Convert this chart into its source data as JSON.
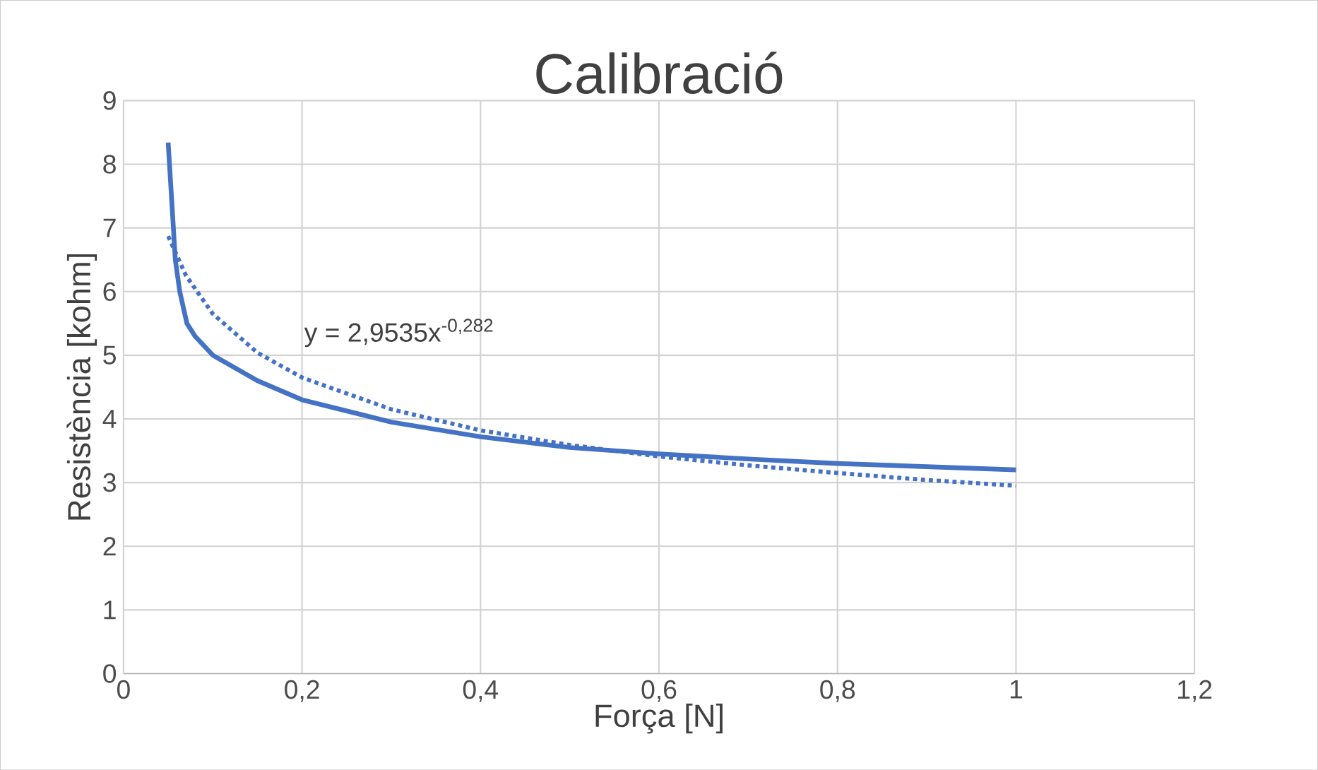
{
  "chart_data": {
    "type": "line",
    "title": "Calibració",
    "xlabel": "Força [N]",
    "ylabel": "Resistència [kohm]",
    "xlim": [
      0,
      1.2
    ],
    "xticks": [
      {
        "value": 0,
        "label": "0"
      },
      {
        "value": 0.2,
        "label": "0,2"
      },
      {
        "value": 0.4,
        "label": "0,4"
      },
      {
        "value": 0.6,
        "label": "0,6"
      },
      {
        "value": 0.8,
        "label": "0,8"
      },
      {
        "value": 1,
        "label": "1"
      },
      {
        "value": 1.2,
        "label": "1,2"
      }
    ],
    "ylim": [
      0,
      9
    ],
    "yticks": [
      0,
      1,
      2,
      3,
      4,
      5,
      6,
      7,
      8,
      9
    ],
    "grid": true,
    "annotations": [
      "y = 2,9535x$^{-0,282}$"
    ],
    "series": [
      {
        "color": "#4472c4",
        "line_style": "solid",
        "x": [
          0.05,
          0.055,
          0.058,
          0.063,
          0.071,
          0.08,
          0.1,
          0.15,
          0.2,
          0.3,
          0.4,
          0.5,
          0.6,
          0.7,
          0.8,
          0.9,
          1.0
        ],
        "values": [
          8.34,
          7.2,
          6.5,
          6.0,
          5.5,
          5.3,
          5.0,
          4.6,
          4.3,
          3.95,
          3.72,
          3.55,
          3.45,
          3.37,
          3.3,
          3.25,
          3.2
        ]
      },
      {
        "color": "#4472c4",
        "line_style": "dotted",
        "x": [
          0.05,
          0.07,
          0.1,
          0.15,
          0.2,
          0.3,
          0.4,
          0.5,
          0.6,
          0.7,
          0.8,
          0.9,
          1.0
        ],
        "values": [
          6.87,
          6.25,
          5.65,
          5.04,
          4.65,
          4.15,
          3.82,
          3.59,
          3.41,
          3.27,
          3.15,
          3.04,
          2.95
        ]
      }
    ]
  }
}
